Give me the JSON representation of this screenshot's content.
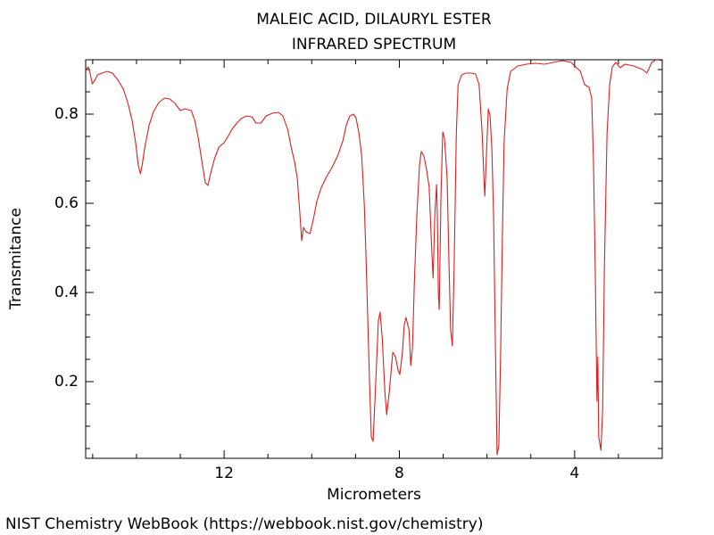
{
  "chart_data": {
    "type": "line",
    "title": "MALEIC ACID, DILAURYL ESTER",
    "subtitle": "INFRARED SPECTRUM",
    "x_label": "Micrometers",
    "y_label": "Transmitance",
    "source": "NIST Chemistry WebBook (https://webbook.nist.gov/chemistry)",
    "color": "#dd1f1f",
    "xlim": [
      15.16,
      2.0
    ],
    "ylim": [
      0.028,
      0.922
    ],
    "xticks": [
      12,
      8,
      4
    ],
    "yticks": [
      0.2,
      0.4,
      0.6,
      0.8
    ],
    "xminor": [
      15,
      14,
      13,
      11,
      10,
      9,
      7,
      6,
      5,
      3
    ],
    "yminor": [
      0.05,
      0.1,
      0.15,
      0.25,
      0.3,
      0.35,
      0.45,
      0.5,
      0.55,
      0.65,
      0.7,
      0.75,
      0.85,
      0.9
    ],
    "x": [
      15.16,
      15.1,
      15.06,
      15.01,
      14.95,
      14.89,
      14.79,
      14.67,
      14.55,
      14.42,
      14.3,
      14.2,
      14.1,
      14.02,
      13.96,
      13.91,
      13.87,
      13.81,
      13.71,
      13.61,
      13.49,
      13.36,
      13.24,
      13.12,
      13.0,
      12.9,
      12.75,
      12.67,
      12.59,
      12.51,
      12.43,
      12.37,
      12.31,
      12.22,
      12.12,
      12.0,
      11.9,
      11.82,
      11.71,
      11.61,
      11.49,
      11.37,
      11.27,
      11.16,
      11.04,
      10.9,
      10.76,
      10.66,
      10.55,
      10.47,
      10.39,
      10.33,
      10.27,
      10.23,
      10.19,
      10.13,
      10.04,
      9.96,
      9.88,
      9.78,
      9.66,
      9.54,
      9.41,
      9.29,
      9.21,
      9.13,
      9.05,
      8.99,
      8.92,
      8.86,
      8.8,
      8.76,
      8.72,
      8.68,
      8.64,
      8.6,
      8.54,
      8.48,
      8.44,
      8.39,
      8.33,
      8.29,
      8.23,
      8.15,
      8.09,
      8.03,
      7.99,
      7.93,
      7.89,
      7.85,
      7.78,
      7.74,
      7.7,
      7.66,
      7.6,
      7.54,
      7.5,
      7.44,
      7.38,
      7.32,
      7.27,
      7.23,
      7.19,
      7.15,
      7.13,
      7.11,
      7.09,
      7.05,
      7.01,
      6.97,
      6.91,
      6.87,
      6.83,
      6.79,
      6.75,
      6.7,
      6.66,
      6.58,
      6.48,
      6.36,
      6.26,
      6.18,
      6.11,
      6.07,
      6.05,
      6.01,
      5.97,
      5.93,
      5.89,
      5.85,
      5.81,
      5.77,
      5.73,
      5.69,
      5.65,
      5.61,
      5.54,
      5.46,
      5.3,
      5.1,
      4.89,
      4.69,
      4.49,
      4.28,
      4.08,
      3.87,
      3.77,
      3.67,
      3.61,
      3.57,
      3.53,
      3.49,
      3.47,
      3.45,
      3.4,
      3.36,
      3.32,
      3.26,
      3.2,
      3.14,
      3.06,
      2.96,
      2.85,
      2.65,
      2.45,
      2.35,
      2.24,
      2.14,
      2.0
    ],
    "series": [
      {
        "values": [
          0.9,
          0.906,
          0.892,
          0.868,
          0.876,
          0.888,
          0.892,
          0.896,
          0.892,
          0.876,
          0.856,
          0.826,
          0.786,
          0.736,
          0.686,
          0.666,
          0.686,
          0.726,
          0.776,
          0.806,
          0.826,
          0.836,
          0.834,
          0.824,
          0.808,
          0.812,
          0.808,
          0.786,
          0.746,
          0.696,
          0.646,
          0.64,
          0.666,
          0.7,
          0.726,
          0.736,
          0.752,
          0.766,
          0.78,
          0.79,
          0.796,
          0.794,
          0.78,
          0.78,
          0.796,
          0.802,
          0.804,
          0.796,
          0.766,
          0.726,
          0.692,
          0.656,
          0.576,
          0.516,
          0.546,
          0.536,
          0.532,
          0.566,
          0.606,
          0.636,
          0.66,
          0.68,
          0.706,
          0.74,
          0.776,
          0.796,
          0.8,
          0.792,
          0.756,
          0.706,
          0.596,
          0.476,
          0.336,
          0.196,
          0.076,
          0.066,
          0.196,
          0.336,
          0.356,
          0.296,
          0.176,
          0.126,
          0.176,
          0.266,
          0.256,
          0.226,
          0.216,
          0.266,
          0.326,
          0.344,
          0.316,
          0.236,
          0.276,
          0.416,
          0.576,
          0.686,
          0.716,
          0.706,
          0.676,
          0.636,
          0.516,
          0.432,
          0.576,
          0.642,
          0.556,
          0.396,
          0.362,
          0.616,
          0.76,
          0.746,
          0.656,
          0.476,
          0.316,
          0.28,
          0.456,
          0.756,
          0.866,
          0.888,
          0.892,
          0.892,
          0.89,
          0.866,
          0.756,
          0.656,
          0.616,
          0.716,
          0.812,
          0.796,
          0.726,
          0.576,
          0.296,
          0.036,
          0.056,
          0.256,
          0.516,
          0.736,
          0.856,
          0.896,
          0.908,
          0.912,
          0.914,
          0.912,
          0.916,
          0.92,
          0.916,
          0.896,
          0.866,
          0.86,
          0.836,
          0.696,
          0.456,
          0.156,
          0.256,
          0.076,
          0.046,
          0.136,
          0.456,
          0.756,
          0.866,
          0.906,
          0.916,
          0.904,
          0.912,
          0.908,
          0.9,
          0.892,
          0.916,
          0.922,
          0.92
        ]
      }
    ]
  }
}
